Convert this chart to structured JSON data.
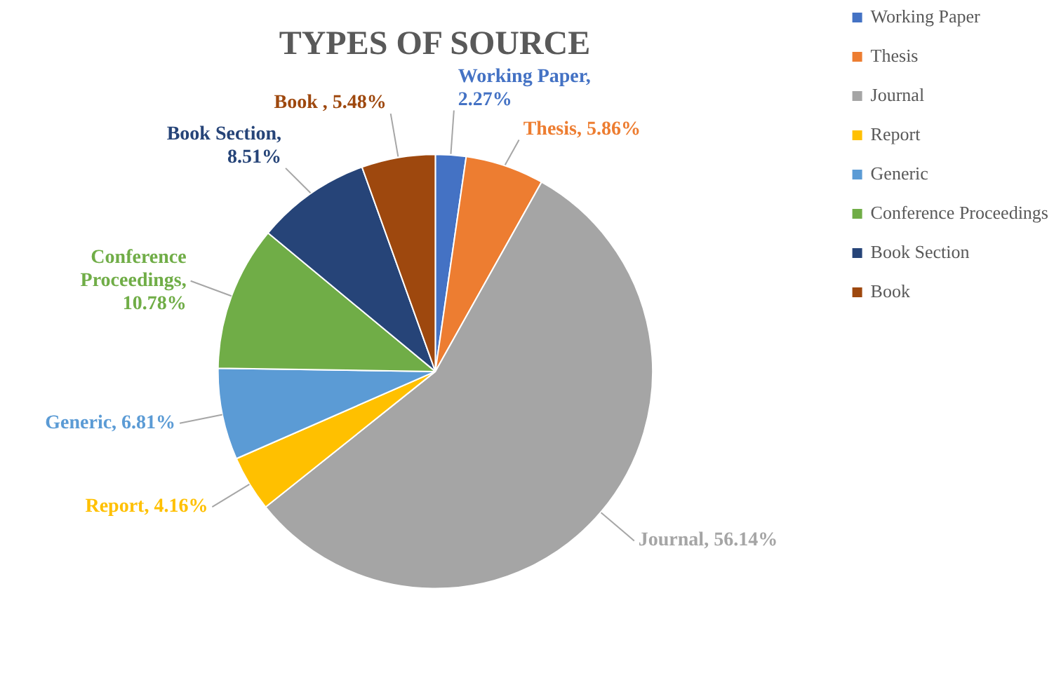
{
  "chart_data": {
    "type": "pie",
    "title": "TYPES OF SOURCE",
    "categories": [
      "Working Paper",
      "Thesis",
      "Journal",
      "Report",
      "Generic",
      "Conference Proceedings",
      "Book Section",
      "Book"
    ],
    "values": [
      2.27,
      5.86,
      56.14,
      4.16,
      6.81,
      10.78,
      8.51,
      5.48
    ],
    "colors": [
      "#4472c4",
      "#ed7d31",
      "#a5a5a5",
      "#ffc000",
      "#5b9bd5",
      "#70ad47",
      "#264478",
      "#9e480e"
    ],
    "value_labels": [
      "Working Paper, 2.27%",
      "Thesis, 5.86%",
      "Journal, 56.14%",
      "Report, 4.16%",
      "Generic, 6.81%",
      "Conference Proceedings, 10.78%",
      "Book Section, 8.51%",
      "Book , 5.48%"
    ],
    "legend": "right"
  }
}
